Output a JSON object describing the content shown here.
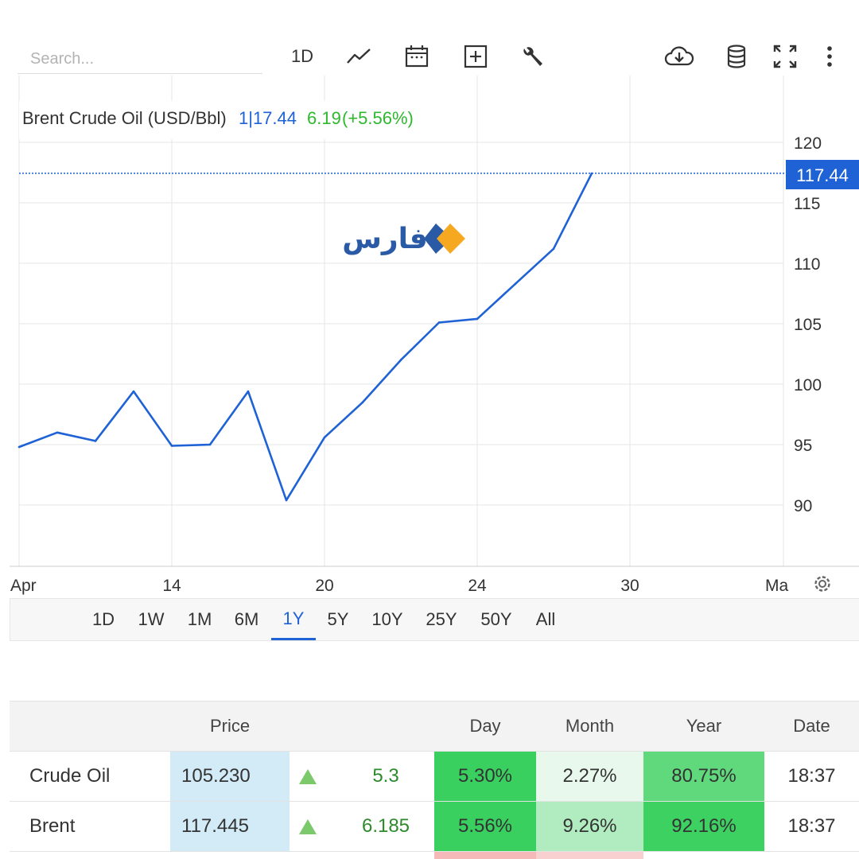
{
  "toolbar": {
    "search_placeholder": "Search...",
    "interval_label": "1D",
    "icons": [
      "line-chart-icon",
      "calendar-icon",
      "add-indicator-icon",
      "wrench-icon",
      "cloud-download-icon",
      "database-icon",
      "fullscreen-icon",
      "more-vertical-icon"
    ]
  },
  "chart": {
    "title_line": "Brent Crude Oil (USD/Bbl)",
    "current_value": "1|17.44",
    "change_abs": "6.19",
    "change_pct": "(+5.56%)",
    "price_tag": "117.44",
    "logo_text": "فارس",
    "colors": {
      "line": "#1e62d6",
      "up": "#2eb82e",
      "tag_bg": "#1e62d6",
      "logo_blue": "#2a5aa6",
      "logo_orange": "#f6a821"
    }
  },
  "chart_data": {
    "type": "line",
    "x_tick_labels": [
      "Apr",
      "14",
      "20",
      "24",
      "30",
      "Ma"
    ],
    "y_tick_labels": [
      "90",
      "95",
      "100",
      "105",
      "110",
      "115",
      "120"
    ],
    "ylim": [
      85,
      124
    ],
    "series": [
      {
        "values": [
          94.8,
          96.0,
          95.3,
          99.4,
          94.9,
          95.0,
          99.4,
          90.4,
          95.6,
          98.5,
          102.0,
          105.1,
          105.4,
          108.3,
          111.2,
          117.44
        ]
      }
    ],
    "last_value": 117.44,
    "grid": true
  },
  "range_tabs": {
    "items": [
      "1D",
      "1W",
      "1M",
      "6M",
      "1Y",
      "5Y",
      "10Y",
      "25Y",
      "50Y",
      "All"
    ],
    "active": "1Y"
  },
  "table": {
    "headers": {
      "price": "Price",
      "day": "Day",
      "month": "Month",
      "year": "Year",
      "date": "Date"
    },
    "rows": [
      {
        "name": "Crude Oil",
        "price": "105.230",
        "change": "5.3",
        "day": "5.30%",
        "month": "2.27%",
        "year": "80.75%",
        "date": "18:37",
        "colors": {
          "day": "#39d05f",
          "month": "#e9f8ec",
          "year": "#5fd97c"
        }
      },
      {
        "name": "Brent",
        "price": "117.445",
        "change": "6.185",
        "day": "5.56%",
        "month": "9.26%",
        "year": "92.16%",
        "date": "18:37",
        "colors": {
          "day": "#39d05f",
          "month": "#b0ecbf",
          "year": "#3dd162"
        }
      }
    ]
  }
}
